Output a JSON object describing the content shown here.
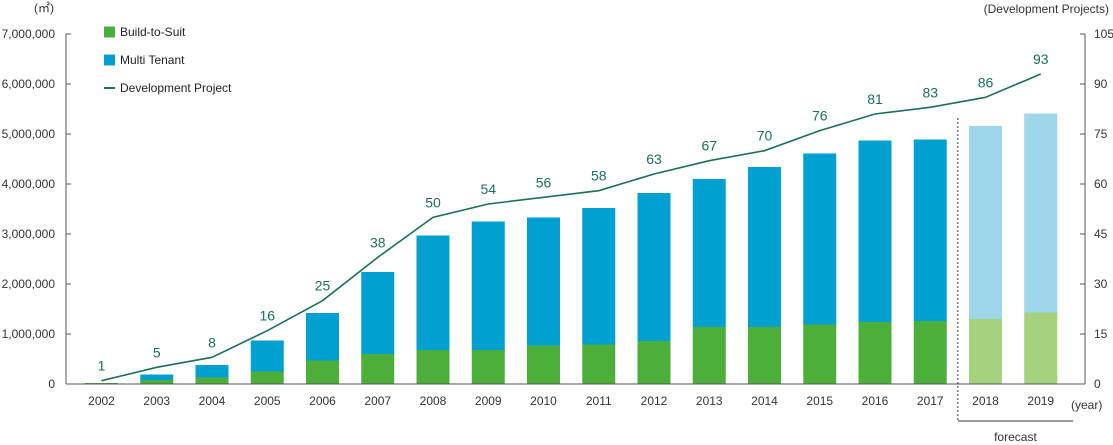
{
  "chart_data": {
    "type": "bar",
    "categories": [
      "2002",
      "2003",
      "2004",
      "2005",
      "2006",
      "2007",
      "2008",
      "2009",
      "2010",
      "2011",
      "2012",
      "2013",
      "2014",
      "2015",
      "2016",
      "2017",
      "2018",
      "2019"
    ],
    "series": [
      {
        "name": "Build-to-Suit",
        "kind": "bar-stacked",
        "color": "#4caf3a",
        "forecast_color": "#a6d27e",
        "values": [
          20000,
          80000,
          130000,
          250000,
          470000,
          600000,
          680000,
          680000,
          770000,
          790000,
          860000,
          1140000,
          1140000,
          1190000,
          1240000,
          1260000,
          1300000,
          1430000
        ]
      },
      {
        "name": "Multi Tenant",
        "kind": "bar-stacked",
        "color": "#00a0d0",
        "forecast_color": "#9ed6ea",
        "values": [
          0,
          110000,
          250000,
          620000,
          950000,
          1640000,
          2290000,
          2570000,
          2560000,
          2730000,
          2960000,
          2960000,
          3200000,
          3420000,
          3630000,
          3630000,
          3860000,
          3980000
        ]
      },
      {
        "name": "Development Project",
        "kind": "line",
        "axis": "right",
        "color": "#1e6e5c",
        "values": [
          1,
          5,
          8,
          16,
          25,
          38,
          50,
          54,
          56,
          58,
          63,
          67,
          70,
          76,
          81,
          83,
          86,
          93
        ]
      }
    ],
    "forecast_categories": [
      "2018",
      "2019"
    ],
    "forecast_label": "forecast",
    "left_axis": {
      "unit": "(㎡)",
      "min": 0,
      "max": 7000000,
      "step": 1000000,
      "tick_labels": [
        "0",
        "1,000,000",
        "2,000,000",
        "3,000,000",
        "4,000,000",
        "5,000,000",
        "6,000,000",
        "7,000,000"
      ]
    },
    "right_axis": {
      "unit": "(Development Projects)",
      "min": 0,
      "max": 105,
      "step": 15,
      "tick_labels": [
        "0",
        "15",
        "30",
        "45",
        "60",
        "75",
        "90",
        "105"
      ]
    },
    "x_unit": "(year)",
    "grid": false,
    "legend_position": "top-left",
    "legend": [
      {
        "label": "Build-to-Suit",
        "type": "box",
        "color": "#4caf3a"
      },
      {
        "label": "Multi Tenant",
        "type": "box",
        "color": "#00a0d0"
      },
      {
        "label": "Development Project",
        "type": "line",
        "color": "#1e6e5c"
      }
    ]
  }
}
